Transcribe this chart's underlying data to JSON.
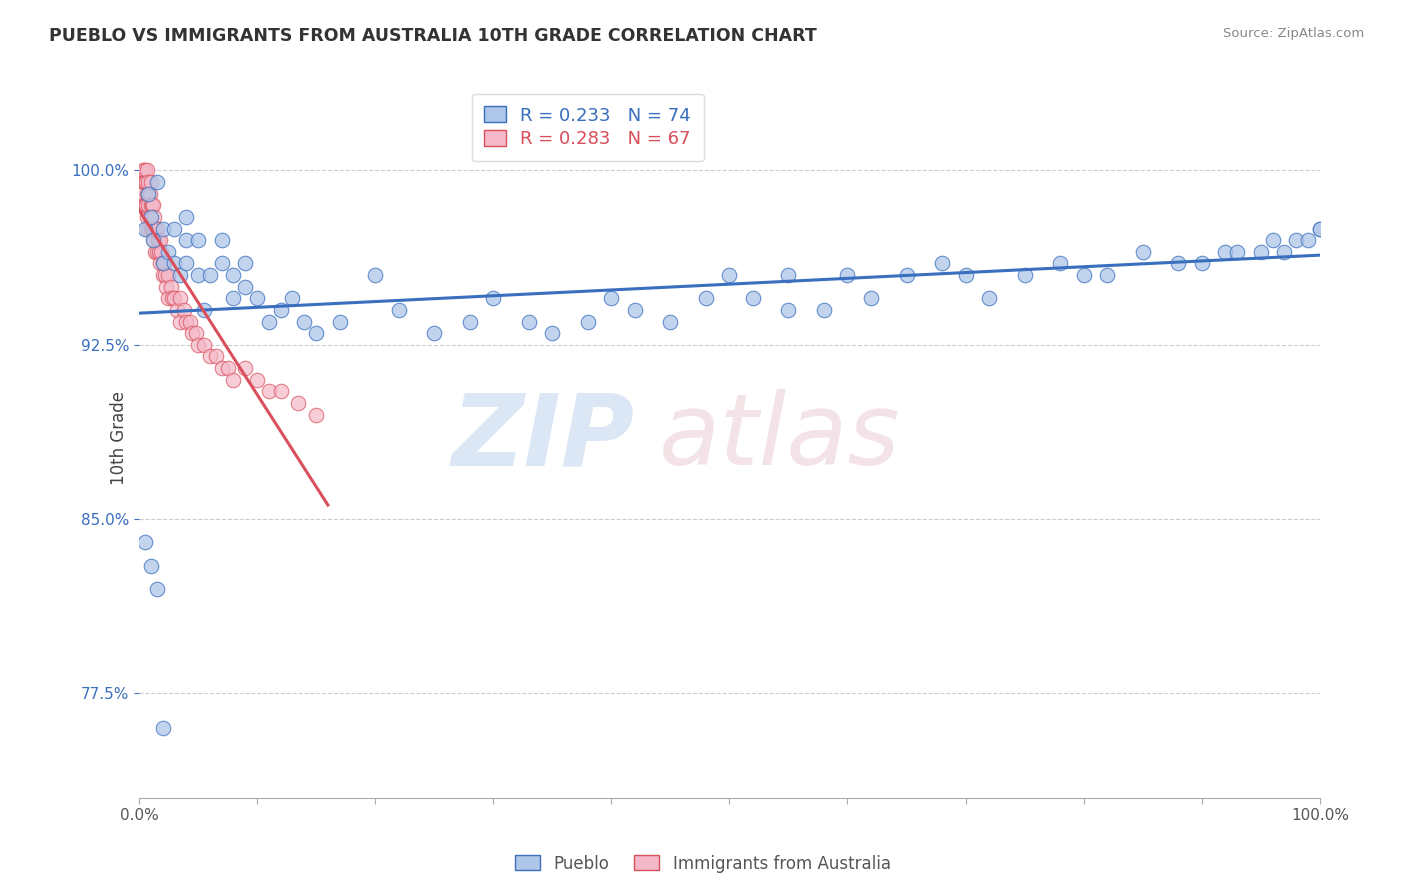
{
  "title": "PUEBLO VS IMMIGRANTS FROM AUSTRALIA 10TH GRADE CORRELATION CHART",
  "source_text": "Source: ZipAtlas.com",
  "ylabel": "10th Grade",
  "legend_entries": [
    "Pueblo",
    "Immigrants from Australia"
  ],
  "r_blue": 0.233,
  "n_blue": 74,
  "r_pink": 0.283,
  "n_pink": 67,
  "xlim": [
    0.0,
    1.0
  ],
  "ylim": [
    0.73,
    1.04
  ],
  "yticks": [
    0.775,
    0.85,
    0.925,
    1.0
  ],
  "ytick_labels": [
    "77.5%",
    "85.0%",
    "92.5%",
    "100.0%"
  ],
  "xticks": [
    0.0,
    0.1,
    0.2,
    0.3,
    0.4,
    0.5,
    0.6,
    0.7,
    0.8,
    0.9,
    1.0
  ],
  "xtick_labels_show": [
    "0.0%",
    "",
    "",
    "",
    "",
    "",
    "",
    "",
    "",
    "",
    "100.0%"
  ],
  "blue_color": "#aec6e8",
  "pink_color": "#f4b8c8",
  "blue_line_color": "#3a6fbf",
  "pink_line_color": "#d94f5c",
  "background_color": "#ffffff",
  "grid_color": "#cccccc",
  "title_color": "#333333",
  "blue_x": [
    0.005,
    0.008,
    0.01,
    0.012,
    0.015,
    0.02,
    0.02,
    0.025,
    0.03,
    0.03,
    0.035,
    0.04,
    0.04,
    0.04,
    0.05,
    0.05,
    0.055,
    0.06,
    0.07,
    0.07,
    0.08,
    0.08,
    0.09,
    0.09,
    0.1,
    0.11,
    0.12,
    0.13,
    0.14,
    0.15,
    0.17,
    0.2,
    0.22,
    0.25,
    0.28,
    0.3,
    0.33,
    0.35,
    0.38,
    0.4,
    0.42,
    0.45,
    0.48,
    0.5,
    0.52,
    0.55,
    0.55,
    0.58,
    0.6,
    0.62,
    0.65,
    0.68,
    0.7,
    0.72,
    0.75,
    0.78,
    0.8,
    0.82,
    0.85,
    0.88,
    0.9,
    0.92,
    0.93,
    0.95,
    0.96,
    0.97,
    0.98,
    0.99,
    1.0,
    1.0,
    0.005,
    0.01,
    0.015,
    0.02
  ],
  "blue_y": [
    0.975,
    0.99,
    0.98,
    0.97,
    0.995,
    0.975,
    0.96,
    0.965,
    0.975,
    0.96,
    0.955,
    0.98,
    0.97,
    0.96,
    0.97,
    0.955,
    0.94,
    0.955,
    0.97,
    0.96,
    0.955,
    0.945,
    0.96,
    0.95,
    0.945,
    0.935,
    0.94,
    0.945,
    0.935,
    0.93,
    0.935,
    0.955,
    0.94,
    0.93,
    0.935,
    0.945,
    0.935,
    0.93,
    0.935,
    0.945,
    0.94,
    0.935,
    0.945,
    0.955,
    0.945,
    0.94,
    0.955,
    0.94,
    0.955,
    0.945,
    0.955,
    0.96,
    0.955,
    0.945,
    0.955,
    0.96,
    0.955,
    0.955,
    0.965,
    0.96,
    0.96,
    0.965,
    0.965,
    0.965,
    0.97,
    0.965,
    0.97,
    0.97,
    0.975,
    0.975,
    0.84,
    0.83,
    0.82,
    0.76
  ],
  "pink_x": [
    0.002,
    0.003,
    0.003,
    0.004,
    0.004,
    0.005,
    0.005,
    0.005,
    0.006,
    0.006,
    0.007,
    0.007,
    0.007,
    0.008,
    0.008,
    0.008,
    0.009,
    0.009,
    0.01,
    0.01,
    0.01,
    0.011,
    0.011,
    0.012,
    0.012,
    0.013,
    0.013,
    0.014,
    0.014,
    0.015,
    0.015,
    0.016,
    0.017,
    0.018,
    0.018,
    0.019,
    0.02,
    0.02,
    0.021,
    0.022,
    0.023,
    0.025,
    0.025,
    0.027,
    0.028,
    0.03,
    0.032,
    0.035,
    0.035,
    0.038,
    0.04,
    0.043,
    0.045,
    0.048,
    0.05,
    0.055,
    0.06,
    0.065,
    0.07,
    0.075,
    0.08,
    0.09,
    0.1,
    0.11,
    0.12,
    0.135,
    0.15
  ],
  "pink_y": [
    0.985,
    1.0,
    0.99,
    0.995,
    0.985,
    1.0,
    0.995,
    0.985,
    0.995,
    0.985,
    1.0,
    0.99,
    0.98,
    0.995,
    0.985,
    0.975,
    0.99,
    0.98,
    0.995,
    0.985,
    0.975,
    0.985,
    0.975,
    0.985,
    0.975,
    0.98,
    0.97,
    0.975,
    0.965,
    0.975,
    0.965,
    0.97,
    0.965,
    0.97,
    0.96,
    0.965,
    0.96,
    0.955,
    0.96,
    0.955,
    0.95,
    0.955,
    0.945,
    0.95,
    0.945,
    0.945,
    0.94,
    0.945,
    0.935,
    0.94,
    0.935,
    0.935,
    0.93,
    0.93,
    0.925,
    0.925,
    0.92,
    0.92,
    0.915,
    0.915,
    0.91,
    0.915,
    0.91,
    0.905,
    0.905,
    0.9,
    0.895
  ]
}
